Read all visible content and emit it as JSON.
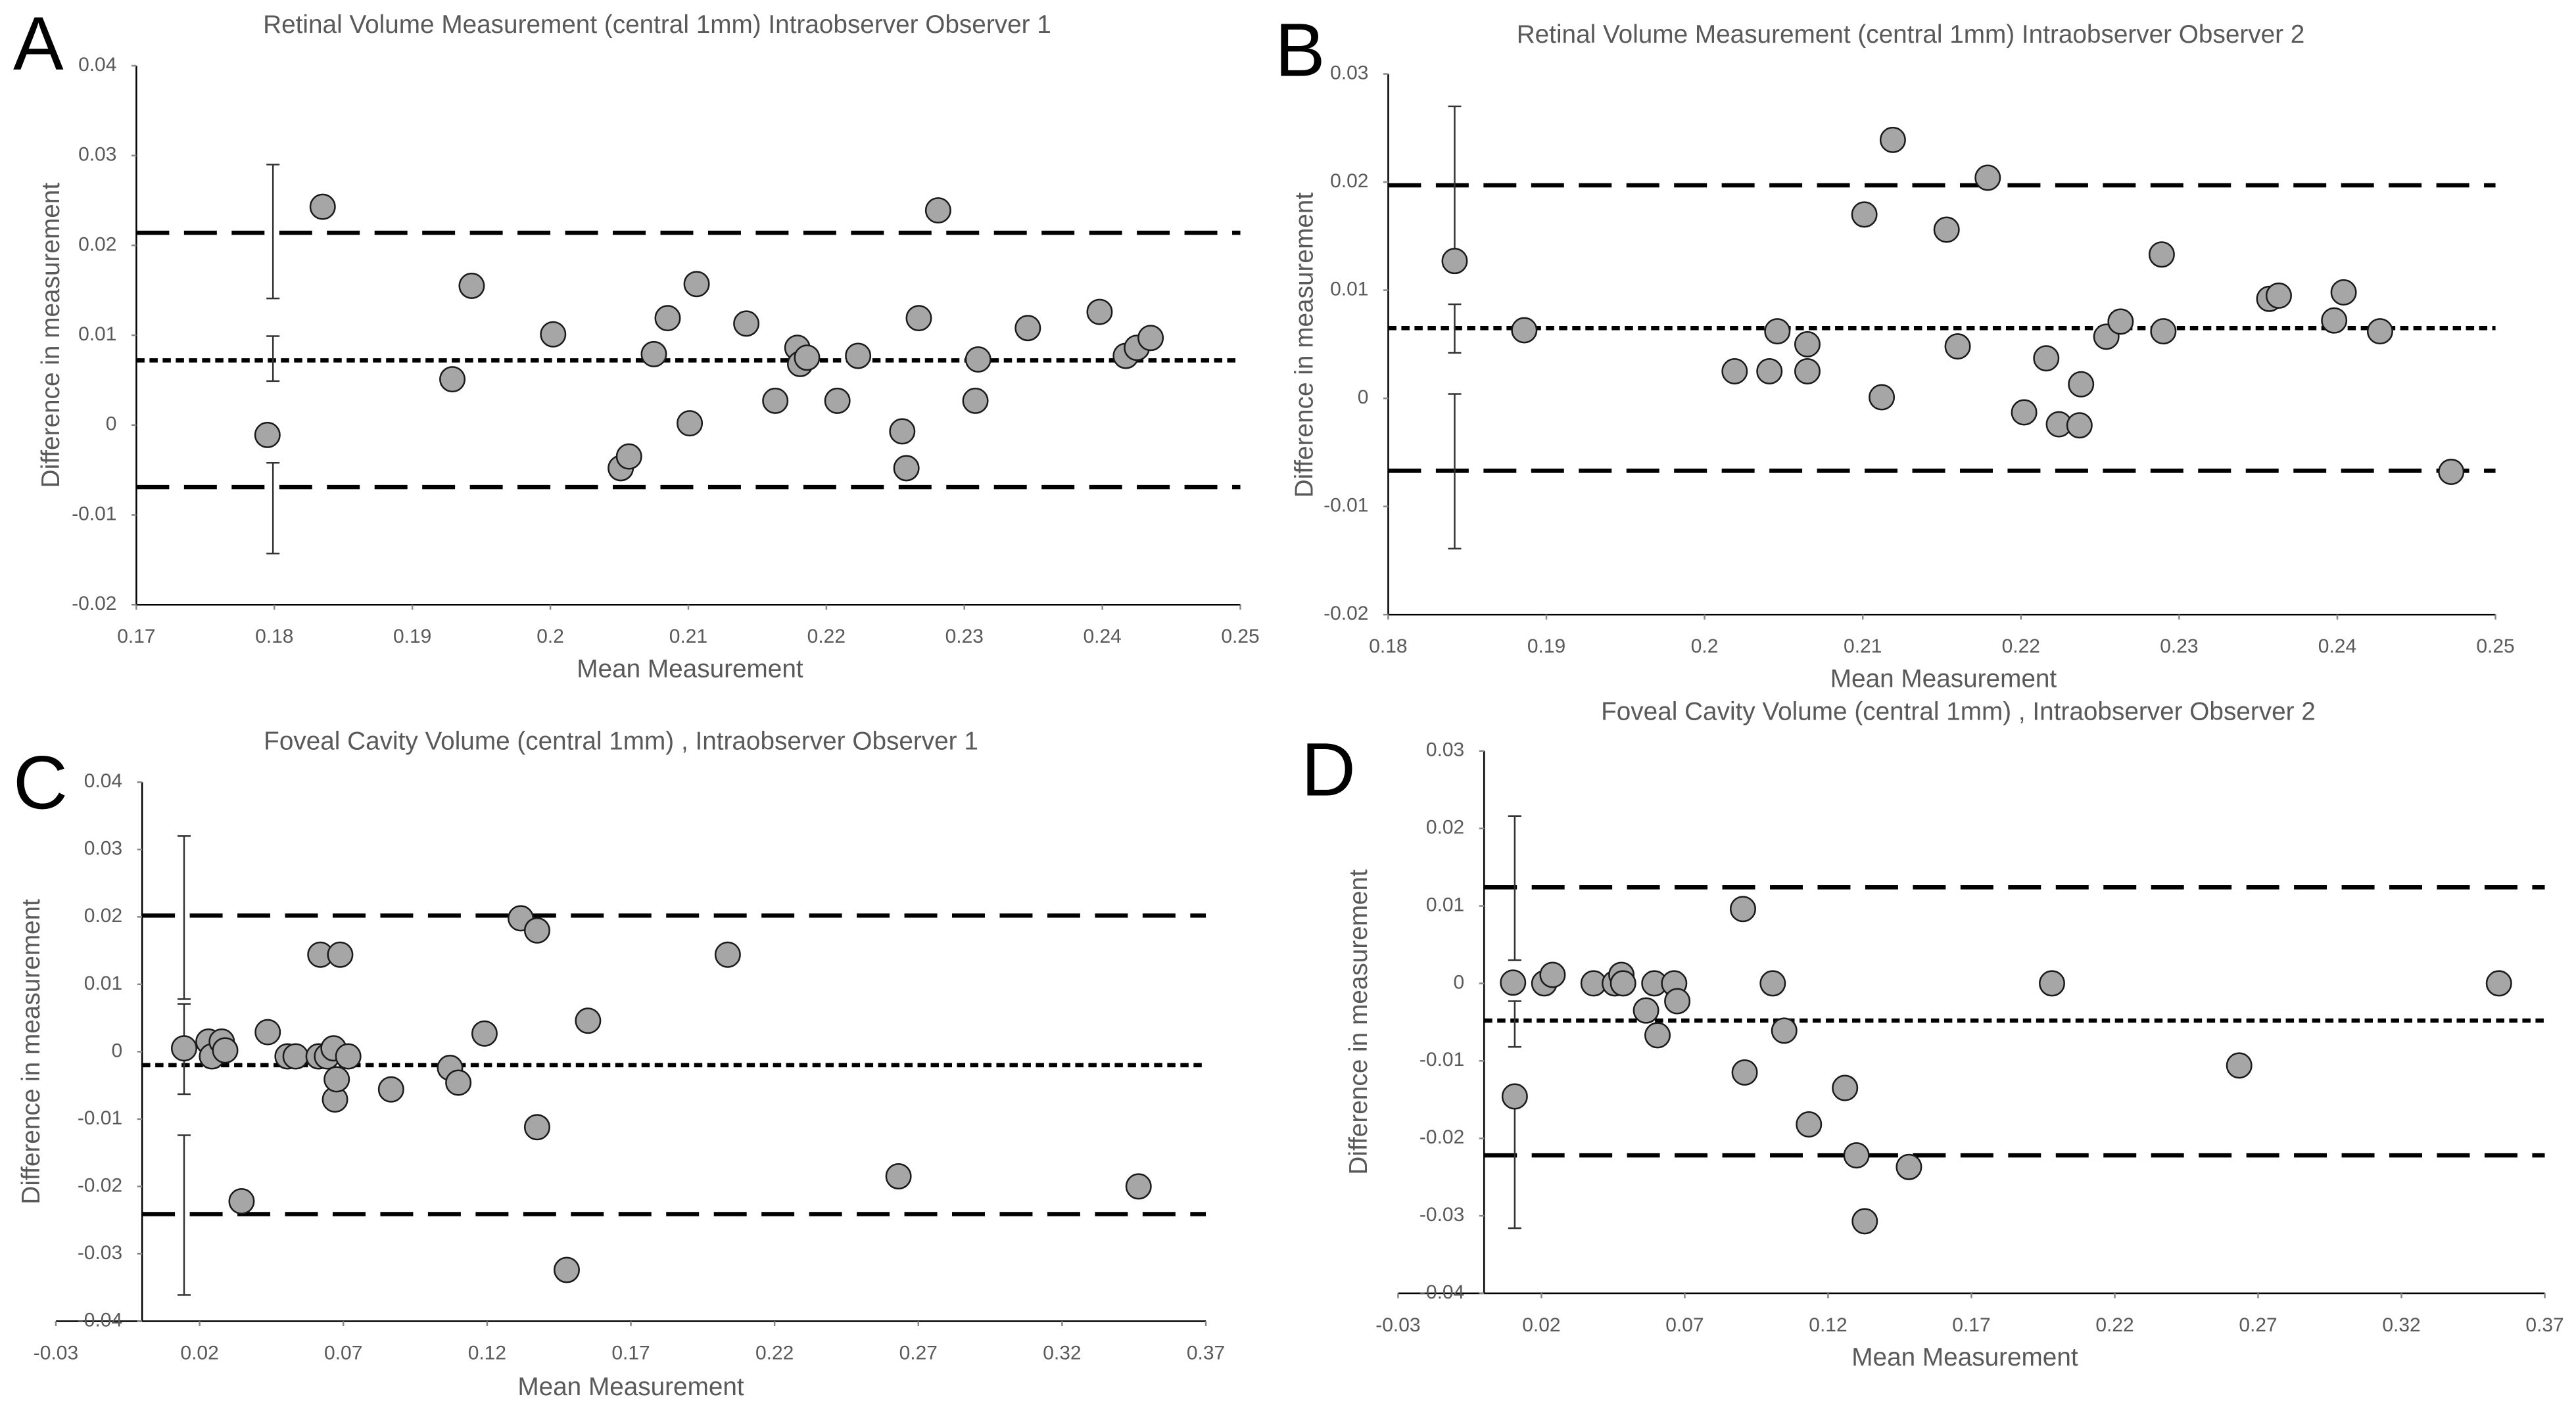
{
  "chart_data": [
    {
      "type": "scatter",
      "label": "A",
      "title": "Retinal Volume Measurement (central 1mm) Intraobserver Observer 1",
      "x_label": "Mean Measurement",
      "y_label": "Difference in measurement",
      "xlim": [
        0.17,
        0.25
      ],
      "xticks": [
        0.17,
        0.18,
        0.19,
        0.2,
        0.21,
        0.22,
        0.23,
        0.24,
        0.25
      ],
      "ylim": [
        -0.02,
        0.04
      ],
      "yticks": [
        -0.02,
        -0.01,
        0,
        0.01,
        0.02,
        0.03,
        0.04
      ],
      "yaxis_crosses": 0.17,
      "color": "#a6a6a6",
      "x": [
        0.1795,
        0.1835,
        0.1929,
        0.1943,
        0.2002,
        0.2051,
        0.2057,
        0.2075,
        0.2085,
        0.2101,
        0.2106,
        0.2142,
        0.2163,
        0.2179,
        0.2181,
        0.2186,
        0.2208,
        0.2223,
        0.2255,
        0.2258,
        0.2267,
        0.2281,
        0.231,
        0.2308,
        0.2346,
        0.2398,
        0.2417,
        0.2425,
        0.2435
      ],
      "values": [
        -0.0011,
        0.0243,
        0.0051,
        0.0155,
        0.0101,
        -0.0048,
        -0.0035,
        0.0079,
        0.0119,
        0.0002,
        0.0157,
        0.0113,
        0.0027,
        0.0086,
        0.0068,
        0.0075,
        0.0027,
        0.0077,
        -0.0007,
        -0.0048,
        0.0119,
        0.0239,
        0.0073,
        0.0027,
        0.0108,
        0.0126,
        0.0077,
        0.0086,
        0.0097
      ],
      "lines": [
        {
          "value": 0.0214,
          "style": "dashed"
        },
        {
          "value": 0.0072,
          "style": "dotted"
        },
        {
          "value": -0.0069,
          "style": "dashed"
        }
      ],
      "error_bars": [
        {
          "x": 0.1799,
          "low": 0.0141,
          "high": 0.029
        },
        {
          "x": 0.1799,
          "low": 0.0049,
          "high": 0.0099
        },
        {
          "x": 0.1799,
          "low": -0.0143,
          "high": -0.0042
        }
      ]
    },
    {
      "type": "scatter",
      "label": "B",
      "title": "Retinal Volume Measurement (central 1mm) Intraobserver Observer 2",
      "x_label": "Mean Measurement",
      "y_label": "Difference in measurement",
      "xlim": [
        0.18,
        0.25
      ],
      "xticks": [
        0.18,
        0.19,
        0.2,
        0.21,
        0.22,
        0.23,
        0.24,
        0.25
      ],
      "ylim": [
        -0.02,
        0.03
      ],
      "yticks": [
        -0.02,
        -0.01,
        0,
        0.01,
        0.02,
        0.03
      ],
      "yaxis_crosses": 0.18,
      "color": "#a6a6a6",
      "x": [
        0.1842,
        0.1886,
        0.2019,
        0.2041,
        0.2046,
        0.2065,
        0.2065,
        0.2101,
        0.2112,
        0.2119,
        0.2153,
        0.216,
        0.2179,
        0.2202,
        0.2216,
        0.2224,
        0.2238,
        0.2237,
        0.2254,
        0.2263,
        0.2289,
        0.229,
        0.2357,
        0.2363,
        0.2398,
        0.2404,
        0.2427,
        0.2472
      ],
      "values": [
        0.0127,
        0.0063,
        0.0025,
        0.0025,
        0.0062,
        0.005,
        0.0025,
        0.017,
        0.0001,
        0.0239,
        0.0156,
        0.0048,
        0.0204,
        -0.0013,
        0.0037,
        -0.0024,
        0.0013,
        -0.0025,
        0.0057,
        0.0071,
        0.0133,
        0.0062,
        0.0092,
        0.0095,
        0.0072,
        0.0098,
        0.0062,
        -0.0068
      ],
      "lines": [
        {
          "value": 0.0197,
          "style": "dashed"
        },
        {
          "value": 0.0065,
          "style": "dotted"
        },
        {
          "value": -0.0067,
          "style": "dashed"
        }
      ],
      "error_bars": [
        {
          "x": 0.1842,
          "low": 0.0133,
          "high": 0.027
        },
        {
          "x": 0.1842,
          "low": 0.0042,
          "high": 0.0087
        },
        {
          "x": 0.1842,
          "low": -0.0139,
          "high": 0.0004
        }
      ]
    },
    {
      "type": "scatter",
      "label": "C",
      "title": "Foveal Cavity Volume (central 1mm) , Intraobserver Observer 1",
      "x_label": "Mean Measurement",
      "y_label": "Difference in measurement",
      "xlim": [
        -0.03,
        0.37
      ],
      "xticks": [
        -0.03,
        0.02,
        0.07,
        0.12,
        0.17,
        0.22,
        0.27,
        0.32,
        0.37
      ],
      "ylim": [
        -0.04,
        0.04
      ],
      "yticks": [
        -0.04,
        -0.03,
        -0.02,
        -0.01,
        0,
        0.01,
        0.02,
        0.03,
        0.04
      ],
      "yaxis_crosses": 0,
      "color": "#a6a6a6",
      "x": [
        0.0146,
        0.0231,
        0.0243,
        0.0277,
        0.0289,
        0.0346,
        0.0437,
        0.0506,
        0.0534,
        0.0614,
        0.062,
        0.0643,
        0.0666,
        0.0671,
        0.0677,
        0.0689,
        0.0717,
        0.0866,
        0.1071,
        0.11,
        0.1191,
        0.1317,
        0.1374,
        0.1374,
        0.1477,
        0.1551,
        0.2037,
        0.2631,
        0.3466
      ],
      "values": [
        0.0005,
        0.0015,
        -0.0007,
        0.0015,
        0.0002,
        -0.0222,
        0.0029,
        -0.0007,
        -0.0007,
        -0.0007,
        0.0144,
        -0.0007,
        0.0005,
        -0.0071,
        -0.0041,
        0.0144,
        -0.0007,
        -0.0056,
        -0.0024,
        -0.0046,
        0.0027,
        0.0198,
        0.018,
        -0.0112,
        -0.0324,
        0.0046,
        0.0144,
        -0.0185,
        -0.02
      ],
      "lines": [
        {
          "value": 0.0202,
          "style": "dashed"
        },
        {
          "value": -0.002,
          "style": "dotted"
        },
        {
          "value": -0.0241,
          "style": "dashed"
        }
      ],
      "error_bars": [
        {
          "x": 0.0146,
          "low": 0.0078,
          "high": 0.032
        },
        {
          "x": 0.0146,
          "low": -0.0063,
          "high": 0.0071
        },
        {
          "x": 0.0146,
          "low": -0.0361,
          "high": -0.0124
        }
      ]
    },
    {
      "type": "scatter",
      "label": "D",
      "title": "Foveal Cavity Volume (central 1mm) , Intraobserver Observer 2",
      "x_label": "Mean Measurement",
      "y_label": "Difference in measurement",
      "xlim": [
        -0.03,
        0.37
      ],
      "xticks": [
        -0.03,
        0.02,
        0.07,
        0.12,
        0.17,
        0.22,
        0.27,
        0.32,
        0.37
      ],
      "ylim": [
        -0.04,
        0.03
      ],
      "yticks": [
        -0.04,
        -0.03,
        -0.02,
        -0.01,
        0,
        0.01,
        0.02,
        0.03
      ],
      "yaxis_crosses": 0,
      "color": "#a6a6a6",
      "x": [
        0.0101,
        0.0107,
        0.021,
        0.0239,
        0.0382,
        0.0456,
        0.0479,
        0.0485,
        0.0565,
        0.0594,
        0.0605,
        0.0663,
        0.0674,
        0.0903,
        0.0909,
        0.1007,
        0.1047,
        0.1133,
        0.1259,
        0.1299,
        0.1328,
        0.1482,
        0.1981,
        0.2634,
        0.354
      ],
      "values": [
        0.0001,
        -0.0146,
        0,
        0.0011,
        0,
        0,
        0.0011,
        0,
        -0.0035,
        0,
        -0.0067,
        0,
        -0.0023,
        0.0096,
        -0.0115,
        0,
        -0.0061,
        -0.0182,
        -0.0135,
        -0.0222,
        -0.0307,
        -0.0237,
        0,
        -0.0106,
        0
      ],
      "lines": [
        {
          "value": 0.0124,
          "style": "dashed"
        },
        {
          "value": -0.0048,
          "style": "dotted"
        },
        {
          "value": -0.0222,
          "style": "dashed"
        }
      ],
      "error_bars": [
        {
          "x": 0.0107,
          "low": 0.003,
          "high": 0.0216
        },
        {
          "x": 0.0107,
          "low": -0.0082,
          "high": -0.0023
        },
        {
          "x": 0.0107,
          "low": -0.0316,
          "high": -0.015
        }
      ]
    }
  ]
}
